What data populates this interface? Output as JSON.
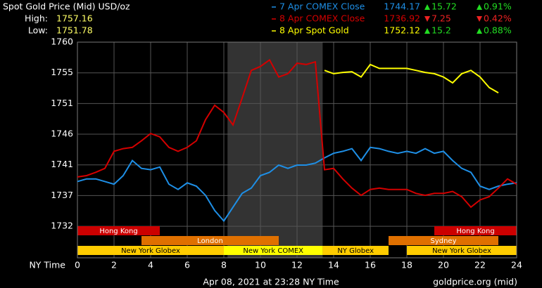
{
  "chart_data": {
    "type": "line",
    "title": "Spot Gold Price (Mid) USD/oz",
    "high_label": "High:",
    "high": 1757.16,
    "low_label": "Low:",
    "low": 1751.78,
    "x_label": "NY Time",
    "footer": "Apr 08, 2021 at 23:28 NY Time",
    "source": "goldprice.org (mid)",
    "x": [
      0,
      0.5,
      1,
      1.5,
      2,
      2.5,
      3,
      3.5,
      4,
      4.5,
      5,
      5.5,
      6,
      6.5,
      7,
      7.5,
      8,
      8.5,
      9,
      9.5,
      10,
      10.5,
      11,
      11.5,
      12,
      12.5,
      13,
      13.5,
      14,
      14.5,
      15,
      15.5,
      16,
      16.5,
      17,
      17.5,
      18,
      18.5,
      19,
      19.5,
      20,
      20.5,
      21,
      21.5,
      22,
      22.5,
      23,
      23.5,
      24
    ],
    "series": [
      {
        "name": "7 Apr COMEX Close",
        "color": "#1e8fe6",
        "close": 1744.17,
        "change": 15.72,
        "change_pct": "0.91%",
        "direction": "up",
        "values": [
          1738.8,
          1739.2,
          1739.2,
          1738.8,
          1738.4,
          1739.7,
          1742.0,
          1740.8,
          1740.6,
          1741.0,
          1738.4,
          1737.6,
          1738.6,
          1738.1,
          1736.7,
          1734.4,
          1732.8,
          1734.9,
          1737.0,
          1737.8,
          1739.7,
          1740.2,
          1741.3,
          1740.8,
          1741.3,
          1741.3,
          1741.6,
          1742.4,
          1743.1,
          1743.4,
          1743.8,
          1742.0,
          1744.0,
          1743.8,
          1743.4,
          1743.1,
          1743.4,
          1743.1,
          1743.8,
          1743.1,
          1743.4,
          1742.0,
          1740.8,
          1740.2,
          1738.1,
          1737.6,
          1738.1,
          1738.4,
          1738.6
        ]
      },
      {
        "name": "8 Apr COMEX Close",
        "color": "#d40000",
        "close": 1736.92,
        "change": 7.25,
        "change_pct": "0.42%",
        "direction": "down",
        "values": [
          1739.5,
          1739.7,
          1740.2,
          1740.8,
          1743.4,
          1743.8,
          1744.0,
          1745.0,
          1746.1,
          1745.6,
          1744.0,
          1743.4,
          1744.0,
          1745.0,
          1748.2,
          1750.4,
          1749.3,
          1747.4,
          1751.5,
          1755.7,
          1756.3,
          1757.3,
          1754.7,
          1755.2,
          1756.8,
          1756.6,
          1757.0,
          1740.6,
          1740.8,
          1739.2,
          1737.8,
          1736.7,
          1737.6,
          1737.8,
          1737.6,
          1737.6,
          1737.6,
          1737.0,
          1736.7,
          1737.0,
          1737.0,
          1737.3,
          1736.5,
          1734.9,
          1736.0,
          1736.5,
          1737.8,
          1739.2,
          1738.4
        ]
      },
      {
        "name": "8 Apr Spot Gold",
        "color": "#ffff00",
        "close": 1752.12,
        "change": 15.2,
        "change_pct": "0.88%",
        "direction": "up",
        "values": [
          null,
          null,
          null,
          null,
          null,
          null,
          null,
          null,
          null,
          null,
          null,
          null,
          null,
          null,
          null,
          null,
          null,
          null,
          null,
          null,
          null,
          null,
          null,
          null,
          null,
          null,
          null,
          1755.7,
          1755.2,
          1755.4,
          1755.5,
          1754.7,
          1756.6,
          1756.0,
          1756.0,
          1756.0,
          1756.0,
          1755.7,
          1755.4,
          1755.2,
          1754.7,
          1753.8,
          1755.2,
          1755.7,
          1754.7,
          1753.1,
          1752.3,
          null,
          null
        ]
      }
    ],
    "highlight": [
      8.2,
      13.4
    ],
    "sessions": [
      {
        "name": "Hong Kong",
        "start": 0,
        "end": 4.5,
        "row": 0,
        "color": "#cc0000"
      },
      {
        "name": "Hong Kong",
        "start": 19.5,
        "end": 24,
        "row": 0,
        "color": "#cc0000"
      },
      {
        "name": "London",
        "start": 3.5,
        "end": 11,
        "row": 1,
        "color": "#e07000"
      },
      {
        "name": "Sydney",
        "start": 17,
        "end": 23,
        "row": 1,
        "color": "#e07000"
      },
      {
        "name": "New York Globex",
        "start": 0,
        "end": 8,
        "row": 2,
        "color": "#ffcc00"
      },
      {
        "name": "New York COMEX",
        "start": 8,
        "end": 13.4,
        "row": 2,
        "color": "#ffff00"
      },
      {
        "name": "NY Globex",
        "start": 13.4,
        "end": 17,
        "row": 2,
        "color": "#ffcc00"
      },
      {
        "name": "New York Globex",
        "start": 18,
        "end": 24,
        "row": 2,
        "color": "#ffcc00"
      }
    ],
    "xlim": [
      0,
      24
    ],
    "xticks": [
      0,
      2,
      4,
      6,
      8,
      10,
      12,
      14,
      16,
      18,
      20,
      22,
      24
    ],
    "ylim": [
      1727.2,
      1760
    ],
    "yticks": [
      {
        "value": 1732,
        "label": "1732"
      },
      {
        "value": 1736.67,
        "label": "1737"
      },
      {
        "value": 1741.33,
        "label": "1741"
      },
      {
        "value": 1746,
        "label": "1746"
      },
      {
        "value": 1750.67,
        "label": "1751"
      },
      {
        "value": 1755.33,
        "label": "1755"
      },
      {
        "value": 1760,
        "label": "1760"
      }
    ],
    "grid": true
  }
}
